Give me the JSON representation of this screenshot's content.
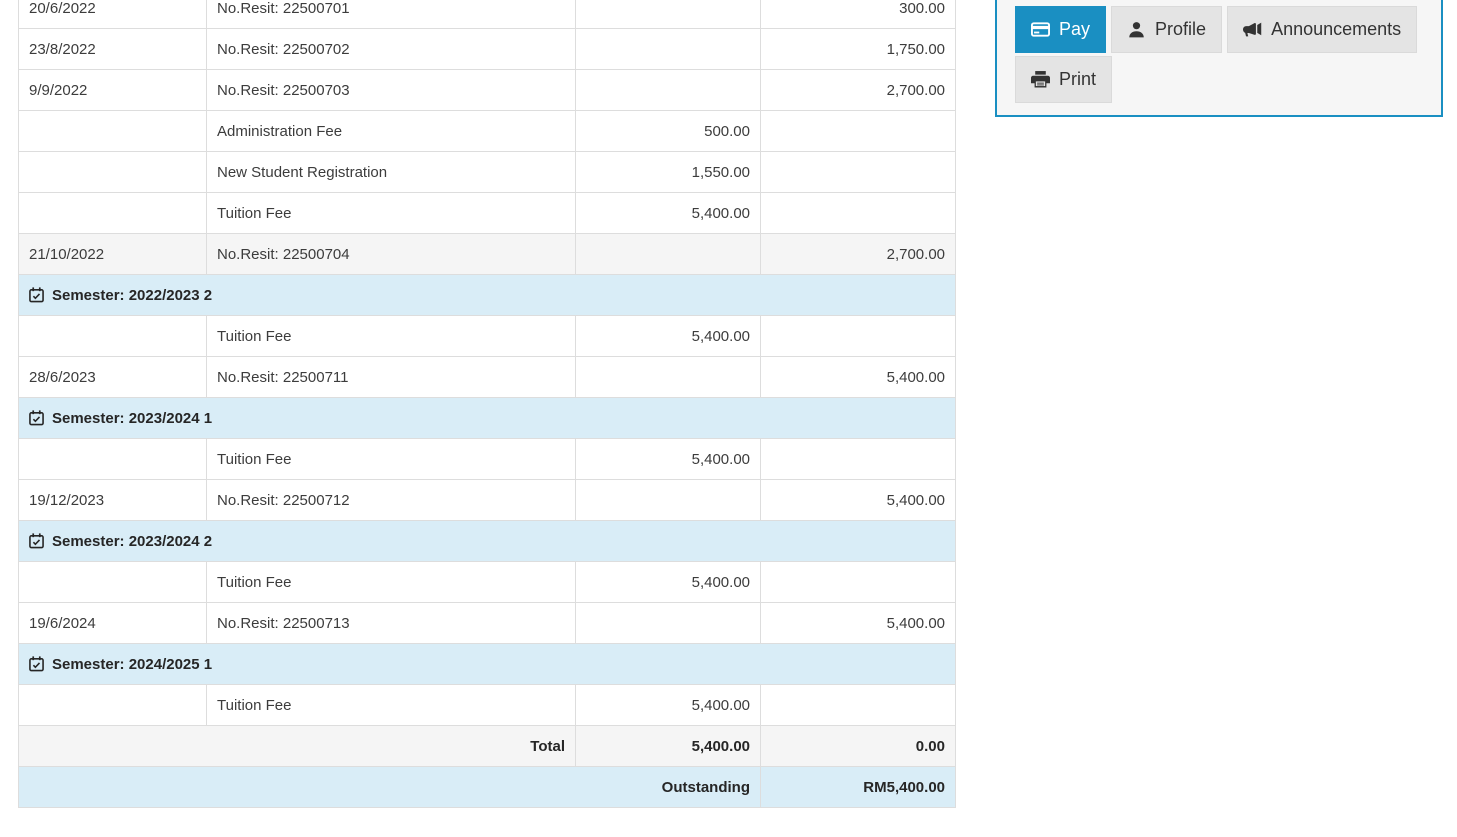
{
  "colors": {
    "accent": "#1a8fc2",
    "semester_bg": "#d9edf7",
    "shaded_row_bg": "#f5f5f5",
    "table_border": "#dddddd"
  },
  "statement_table": {
    "rows": [
      {
        "kind": "entry",
        "date": "20/6/2022",
        "description": "No.Resit: 22500701",
        "charge": "",
        "payment": "300.00",
        "shaded": false
      },
      {
        "kind": "entry",
        "date": "23/8/2022",
        "description": "No.Resit: 22500702",
        "charge": "",
        "payment": "1,750.00",
        "shaded": false
      },
      {
        "kind": "entry",
        "date": "9/9/2022",
        "description": "No.Resit: 22500703",
        "charge": "",
        "payment": "2,700.00",
        "shaded": false
      },
      {
        "kind": "entry",
        "date": "",
        "description": "Administration Fee",
        "charge": "500.00",
        "payment": "",
        "shaded": false
      },
      {
        "kind": "entry",
        "date": "",
        "description": "New Student Registration",
        "charge": "1,550.00",
        "payment": "",
        "shaded": false
      },
      {
        "kind": "entry",
        "date": "",
        "description": "Tuition Fee",
        "charge": "5,400.00",
        "payment": "",
        "shaded": false
      },
      {
        "kind": "entry",
        "date": "21/10/2022",
        "description": "No.Resit: 22500704",
        "charge": "",
        "payment": "2,700.00",
        "shaded": true
      },
      {
        "kind": "semester",
        "label": "Semester: 2022/2023 2"
      },
      {
        "kind": "entry",
        "date": "",
        "description": "Tuition Fee",
        "charge": "5,400.00",
        "payment": "",
        "shaded": false
      },
      {
        "kind": "entry",
        "date": "28/6/2023",
        "description": "No.Resit: 22500711",
        "charge": "",
        "payment": "5,400.00",
        "shaded": false
      },
      {
        "kind": "semester",
        "label": "Semester: 2023/2024 1"
      },
      {
        "kind": "entry",
        "date": "",
        "description": "Tuition Fee",
        "charge": "5,400.00",
        "payment": "",
        "shaded": false
      },
      {
        "kind": "entry",
        "date": "19/12/2023",
        "description": "No.Resit: 22500712",
        "charge": "",
        "payment": "5,400.00",
        "shaded": false
      },
      {
        "kind": "semester",
        "label": "Semester: 2023/2024 2"
      },
      {
        "kind": "entry",
        "date": "",
        "description": "Tuition Fee",
        "charge": "5,400.00",
        "payment": "",
        "shaded": false
      },
      {
        "kind": "entry",
        "date": "19/6/2024",
        "description": "No.Resit: 22500713",
        "charge": "",
        "payment": "5,400.00",
        "shaded": false
      },
      {
        "kind": "semester",
        "label": "Semester: 2024/2025 1"
      },
      {
        "kind": "entry",
        "date": "",
        "description": "Tuition Fee",
        "charge": "5,400.00",
        "payment": "",
        "shaded": false
      },
      {
        "kind": "total",
        "label": "Total",
        "charge": "5,400.00",
        "payment": "0.00"
      },
      {
        "kind": "outstanding",
        "label": "Outstanding",
        "payment": "RM5,400.00"
      }
    ]
  },
  "actions_panel": {
    "buttons": [
      {
        "label": "Pay",
        "icon": "credit-card-icon",
        "primary": true
      },
      {
        "label": "Profile",
        "icon": "user-icon",
        "primary": false
      },
      {
        "label": "Announcements",
        "icon": "bullhorn-icon",
        "primary": false
      },
      {
        "label": "Print",
        "icon": "print-icon",
        "primary": false
      }
    ]
  }
}
